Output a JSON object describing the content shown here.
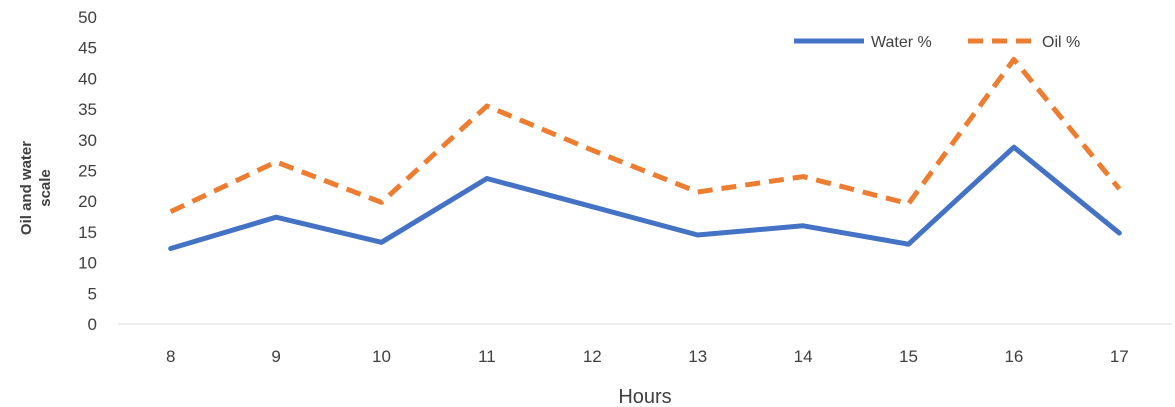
{
  "chart_data": {
    "type": "line",
    "categories": [
      "8",
      "9",
      "10",
      "11",
      "12",
      "13",
      "14",
      "15",
      "16",
      "17"
    ],
    "series": [
      {
        "name": "Water %",
        "values": [
          12.3,
          17.4,
          13.3,
          23.7,
          19.1,
          14.5,
          16.0,
          13.0,
          28.8,
          14.8
        ],
        "color": "#4472C4",
        "style": "solid"
      },
      {
        "name": "Oil %",
        "values": [
          18.3,
          26.4,
          19.8,
          35.5,
          28.3,
          21.5,
          24.0,
          19.6,
          43.1,
          22.0
        ],
        "color": "#ED7D31",
        "style": "dashed"
      }
    ],
    "title": "",
    "xlabel": "Hours",
    "ylabel_lines": [
      "Oil and water",
      "scale"
    ],
    "ylim": [
      0,
      50
    ],
    "yticks": [
      "0",
      "5",
      "10",
      "15",
      "20",
      "25",
      "30",
      "35",
      "40",
      "45",
      "50"
    ],
    "grid": false,
    "legend": "top-right"
  }
}
